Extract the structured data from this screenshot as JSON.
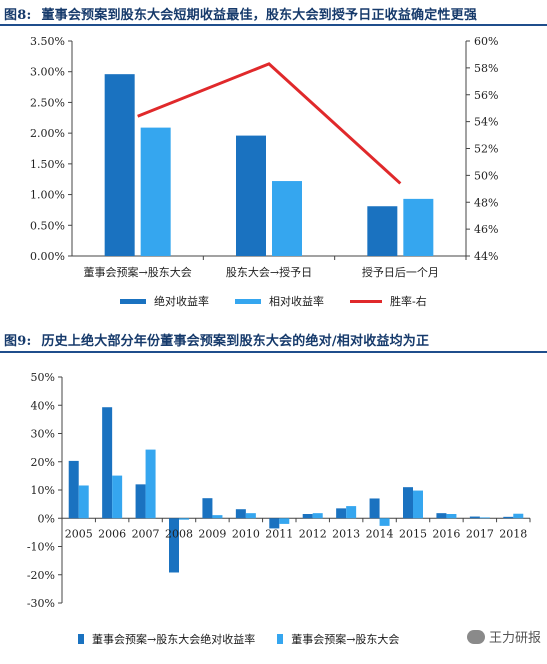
{
  "figure8": {
    "num": "图8:",
    "title": "董事会预案到股东大会短期收益最佳，股东大会到授予日正收益确定性更强",
    "legend": {
      "abs": "绝对收益率",
      "rel": "相对收益率",
      "win": "胜率-右"
    }
  },
  "figure9": {
    "num": "图9:",
    "title": "历史上绝大部分年份董事会预案到股东大会的绝对/相对收益均为正",
    "legend": {
      "abs": "董事会预案→股东大会绝对收益率",
      "rel": "董事会预案→股东大会"
    }
  },
  "watermark": {
    "text": "王力研报"
  },
  "colors": {
    "dark_blue": "#1a72c0",
    "light_blue": "#35a6ef",
    "red": "#e0292b",
    "title_blue": "#163a6b"
  },
  "chart_data": [
    {
      "type": "bar",
      "categories": [
        "董事会预案→股东大会",
        "股东大会→授予日",
        "授予日后一个月"
      ],
      "series": [
        {
          "name": "绝对收益率",
          "type": "bar",
          "axis": "left",
          "values": [
            2.96,
            1.96,
            0.81
          ]
        },
        {
          "name": "相对收益率",
          "type": "bar",
          "axis": "left",
          "values": [
            2.09,
            1.22,
            0.93
          ]
        },
        {
          "name": "胜率-右",
          "type": "line",
          "axis": "right",
          "values": [
            54.4,
            58.3,
            49.4
          ]
        }
      ],
      "y_left": {
        "min": 0,
        "max": 3.5,
        "step": 0.5,
        "ticks": [
          "0.00%",
          "0.50%",
          "1.00%",
          "1.50%",
          "2.00%",
          "2.50%",
          "3.00%",
          "3.50%"
        ]
      },
      "y_right": {
        "min": 44,
        "max": 60,
        "step": 2,
        "ticks": [
          "44%",
          "46%",
          "48%",
          "50%",
          "52%",
          "54%",
          "56%",
          "58%",
          "60%"
        ]
      },
      "legend_position": "bottom",
      "grid": false
    },
    {
      "type": "bar",
      "categories": [
        "2005",
        "2006",
        "2007",
        "2008",
        "2009",
        "2010",
        "2011",
        "2012",
        "2013",
        "2014",
        "2015",
        "2016",
        "2017",
        "2018"
      ],
      "series": [
        {
          "name": "董事会预案→股东大会绝对收益率",
          "values": [
            20.3,
            39.3,
            12.0,
            -19.2,
            7.1,
            3.2,
            -3.6,
            1.5,
            3.5,
            7.0,
            11.0,
            1.8,
            0.6,
            0.5
          ]
        },
        {
          "name": "董事会预案→股东大会",
          "values": [
            11.6,
            15.1,
            24.3,
            -0.5,
            1.1,
            1.8,
            -2.0,
            1.8,
            4.3,
            -2.7,
            9.8,
            1.5,
            0.3,
            1.6
          ]
        }
      ],
      "y": {
        "min": -30,
        "max": 50,
        "step": 10,
        "ticks": [
          "-30%",
          "-20%",
          "-10%",
          "0%",
          "10%",
          "20%",
          "30%",
          "40%",
          "50%"
        ]
      },
      "legend_position": "bottom",
      "grid": false
    }
  ]
}
